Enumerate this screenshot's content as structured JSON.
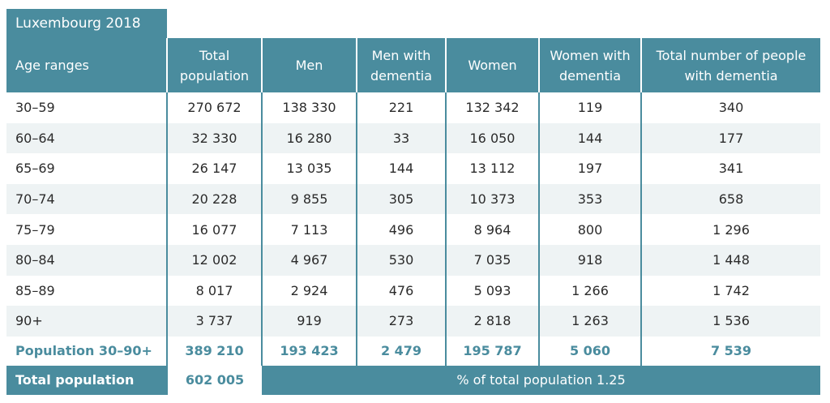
{
  "caption": "Luxembourg 2018",
  "columns": [
    "Age ranges",
    "Total population",
    "Men",
    "Men with dementia",
    "Women",
    "Women with dementia",
    "Total number of people with dementia"
  ],
  "rows": [
    [
      "30–59",
      "270 672",
      "138 330",
      "221",
      "132 342",
      "119",
      "340"
    ],
    [
      "60–64",
      "32 330",
      "16 280",
      "33",
      "16 050",
      "144",
      "177"
    ],
    [
      "65–69",
      "26 147",
      "13 035",
      "144",
      "13 112",
      "197",
      "341"
    ],
    [
      "70–74",
      "20 228",
      "9 855",
      "305",
      "10 373",
      "353",
      "658"
    ],
    [
      "75–79",
      "16 077",
      "7 113",
      "496",
      "8 964",
      "800",
      "1 296"
    ],
    [
      "80–84",
      "12 002",
      "4 967",
      "530",
      "7 035",
      "918",
      "1 448"
    ],
    [
      "85–89",
      "8 017",
      "2 924",
      "476",
      "5 093",
      "1 266",
      "1 742"
    ],
    [
      "90+",
      "3 737",
      "919",
      "273",
      "2 818",
      "1 263",
      "1 536"
    ]
  ],
  "summary": [
    "Population 30–90+",
    "389 210",
    "193 423",
    "2 479",
    "195 787",
    "5 060",
    "7 539"
  ],
  "total": {
    "label": "Total population",
    "value": "602 005",
    "percent_text": "% of total population 1.25"
  },
  "colors": {
    "header": "#4a8c9e",
    "stripe": "#eef3f4"
  }
}
